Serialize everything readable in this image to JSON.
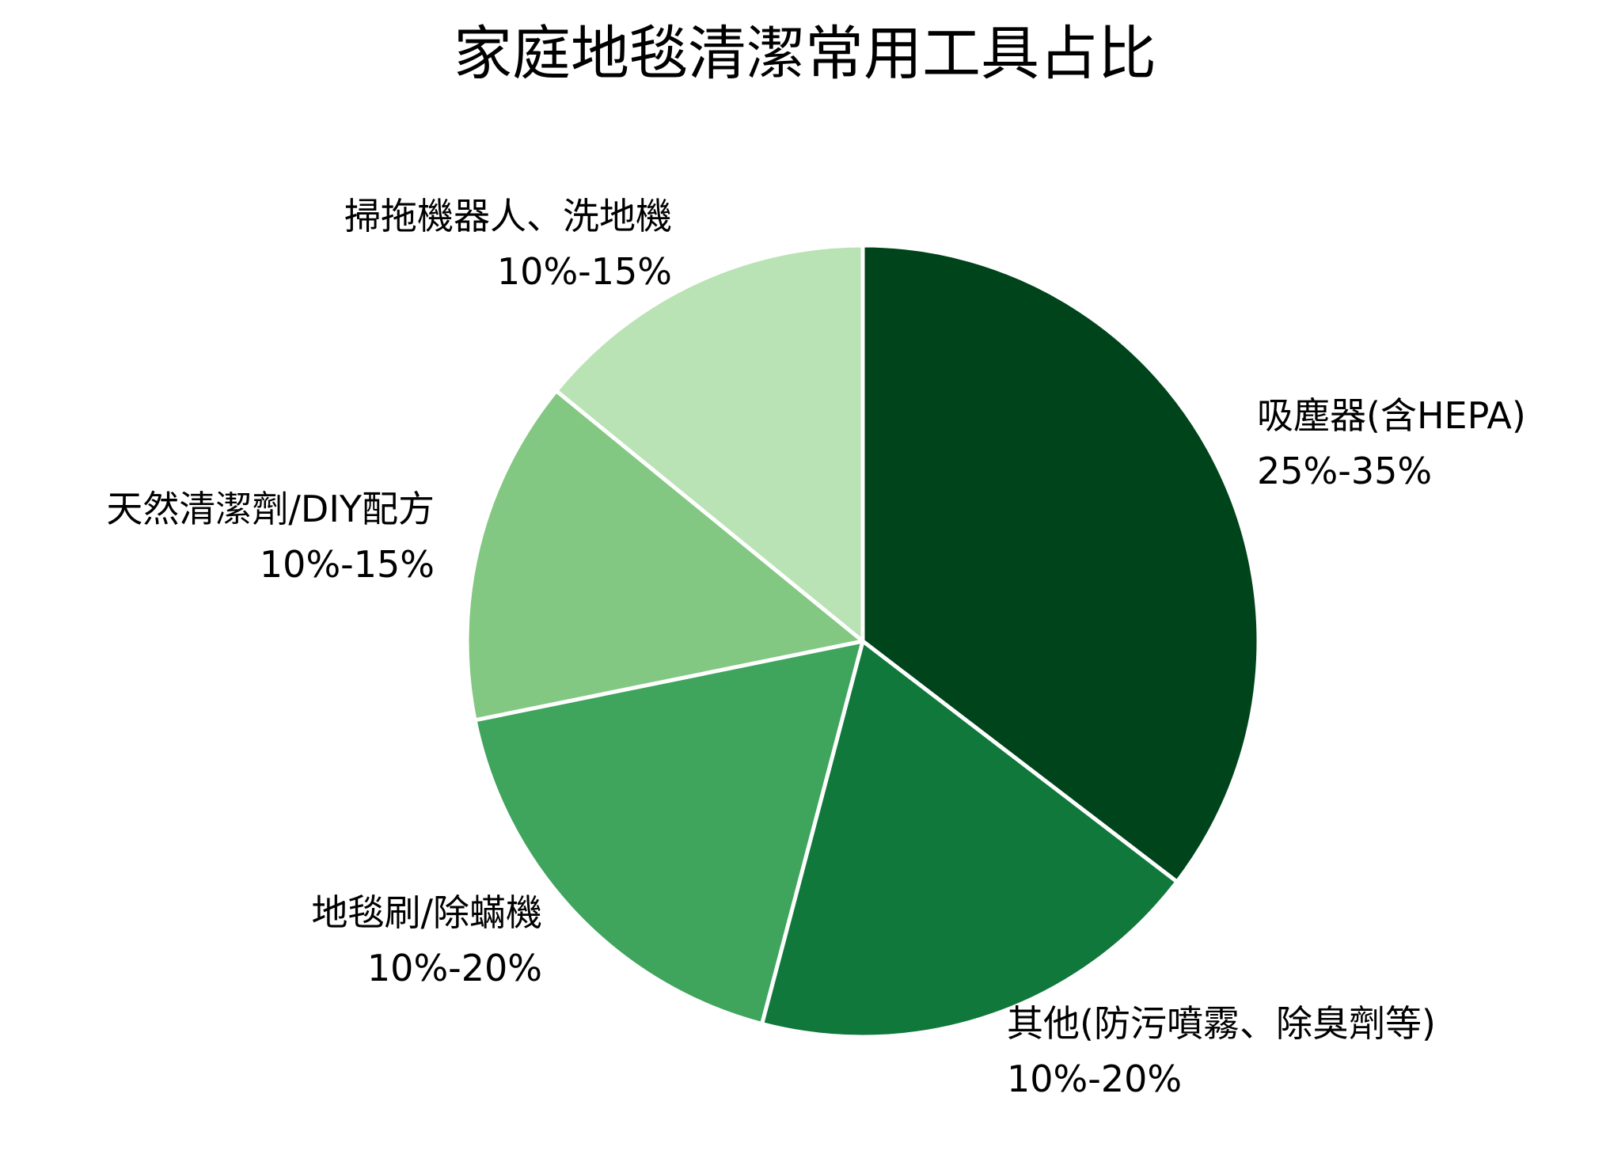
{
  "chart_data": {
    "type": "pie",
    "title": "家庭地毯清潔常用工具占比",
    "start_angle": "top (12 o'clock), clockwise",
    "slices": [
      {
        "label": "吸塵器(含HEPA)",
        "range_text": "25%-35%",
        "value": 35.4,
        "color": "#00441b"
      },
      {
        "label": "其他(防污噴霧、除臭劑等)",
        "range_text": "10%-20%",
        "value": 18.7,
        "color": "#10783a"
      },
      {
        "label": "地毯刷/除蟎機",
        "range_text": "10%-20%",
        "value": 17.7,
        "color": "#3fa45c"
      },
      {
        "label": "天然清潔劑/DIY配方",
        "range_text": "10%-15%",
        "value": 14.1,
        "color": "#82c882"
      },
      {
        "label": "掃拖機器人、洗地機",
        "range_text": "10%-15%",
        "value": 14.1,
        "color": "#b9e3b4"
      }
    ],
    "legend": "none (labels placed outside slices)"
  }
}
